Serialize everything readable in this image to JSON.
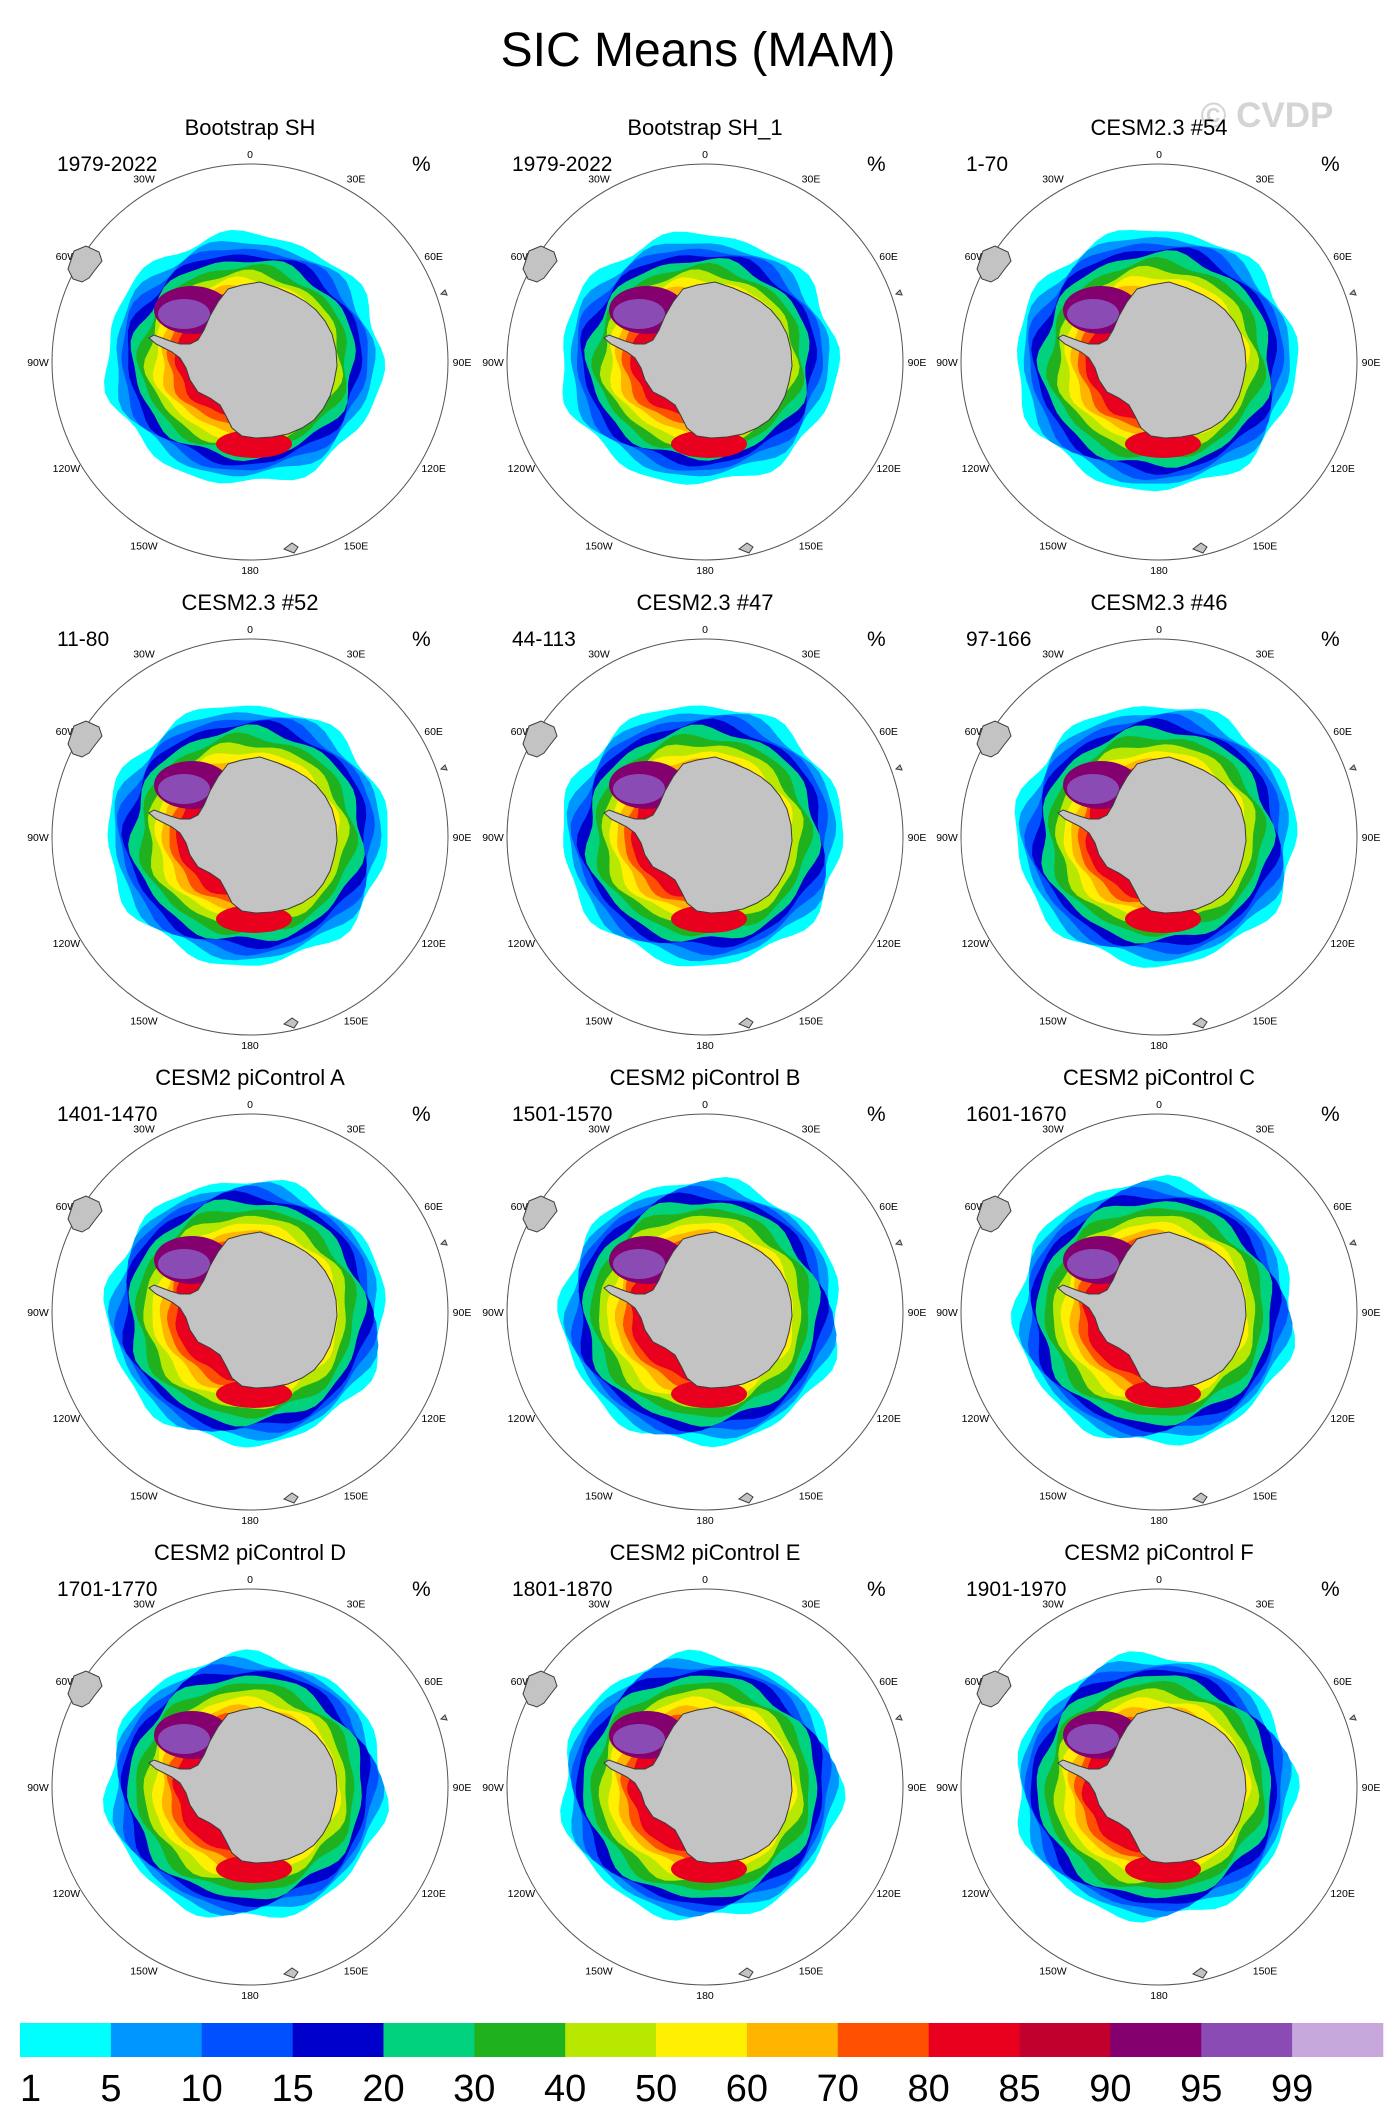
{
  "chart_data": {
    "type": "polar_map_contour",
    "title": "SIC Means (MAM)",
    "watermark": "© CVDP",
    "units": "%",
    "projection": "South polar stereographic",
    "longitude_labels": [
      "0",
      "30E",
      "60E",
      "90E",
      "120E",
      "150E",
      "180",
      "150W",
      "120W",
      "90W",
      "60W",
      "30W"
    ],
    "colorbar": {
      "levels": [
        "1",
        "5",
        "10",
        "15",
        "20",
        "30",
        "40",
        "50",
        "60",
        "70",
        "80",
        "85",
        "90",
        "95",
        "99"
      ],
      "colors": [
        "#00ffff",
        "#0096ff",
        "#0050ff",
        "#0000cd",
        "#00d27d",
        "#20b21e",
        "#b8e800",
        "#ffef00",
        "#ffb400",
        "#ff4f00",
        "#e8001e",
        "#c1002d",
        "#83006e",
        "#8b4bb4",
        "#c7a8dc"
      ]
    },
    "panels": [
      {
        "name": "Bootstrap SH",
        "period": "1979-2022",
        "units": "%",
        "pattern": 0
      },
      {
        "name": "Bootstrap SH_1",
        "period": "1979-2022",
        "units": "%",
        "pattern": 0
      },
      {
        "name": "CESM2.3 #54",
        "period": "1-70",
        "units": "%",
        "pattern": 1
      },
      {
        "name": "CESM2.3 #52",
        "period": "11-80",
        "units": "%",
        "pattern": 1
      },
      {
        "name": "CESM2.3 #47",
        "period": "44-113",
        "units": "%",
        "pattern": 1
      },
      {
        "name": "CESM2.3 #46",
        "period": "97-166",
        "units": "%",
        "pattern": 1
      },
      {
        "name": "CESM2 piControl A",
        "period": "1401-1470",
        "units": "%",
        "pattern": 2
      },
      {
        "name": "CESM2 piControl B",
        "period": "1501-1570",
        "units": "%",
        "pattern": 2
      },
      {
        "name": "CESM2 piControl C",
        "period": "1601-1670",
        "units": "%",
        "pattern": 2
      },
      {
        "name": "CESM2 piControl D",
        "period": "1701-1770",
        "units": "%",
        "pattern": 2
      },
      {
        "name": "CESM2 piControl E",
        "period": "1801-1870",
        "units": "%",
        "pattern": 2
      },
      {
        "name": "CESM2 piControl F",
        "period": "1901-1970",
        "units": "%",
        "pattern": 2
      }
    ]
  }
}
